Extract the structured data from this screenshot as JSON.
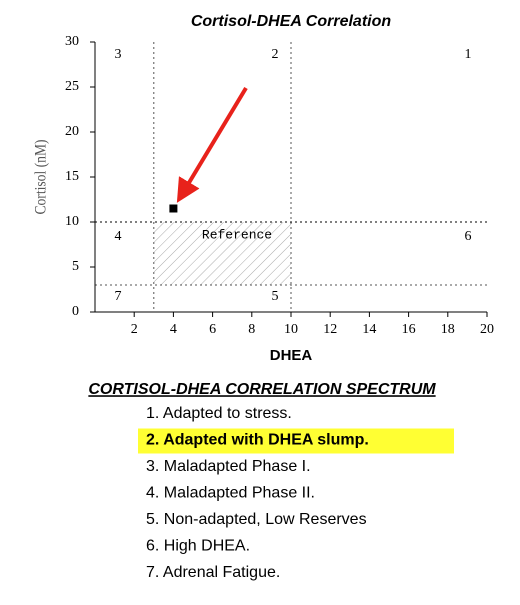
{
  "chart_data": {
    "type": "scatter",
    "title": "Cortisol-DHEA Correlation",
    "x_label": "DHEA",
    "y_label": "Cortisol (nM)",
    "xlim": [
      0,
      20
    ],
    "ylim": [
      0,
      30
    ],
    "xticks": [
      2,
      4,
      6,
      8,
      10,
      12,
      14,
      16,
      18,
      20
    ],
    "yticks": [
      0,
      5,
      10,
      15,
      20,
      25,
      30
    ],
    "x": [
      4
    ],
    "y": [
      11.5
    ],
    "color": "#000000",
    "vlines": [
      3,
      10
    ],
    "hlines": [
      3,
      10
    ],
    "region_labels": [
      "1",
      "2",
      "3",
      "4",
      "5",
      "6",
      "7"
    ],
    "annotation": "Reference"
  },
  "spectrum": {
    "title": "CORTISOL-DHEA CORRELATION SPECTRUM",
    "items": [
      "1. Adapted to stress.",
      "2. Adapted with DHEA slump.",
      "3. Maladapted Phase I.",
      "4. Maladapted Phase II.",
      "5. Non-adapted, Low Reserves",
      "6. High DHEA.",
      "7. Adrenal Fatigue."
    ],
    "highlighted": 1
  }
}
